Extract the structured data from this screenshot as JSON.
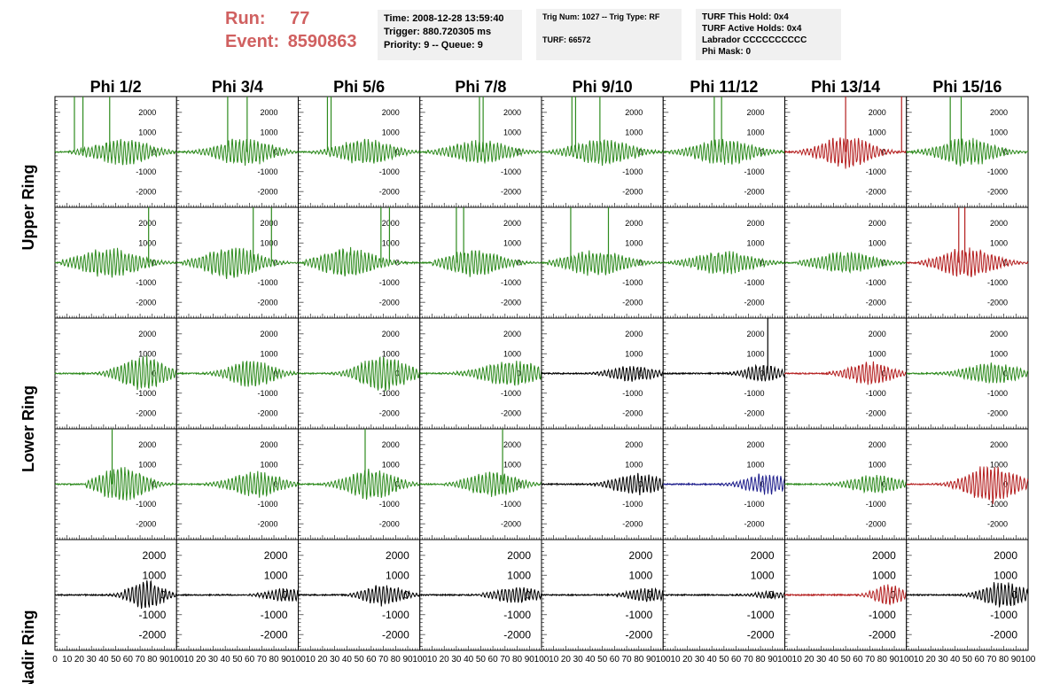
{
  "header": {
    "run_label": "Run:",
    "run_value": "77",
    "event_label": "Event:",
    "event_value": "8590863",
    "time": "Time: 2008-12-28 13:59:40",
    "trigger": "Trigger: 880.720305 ms",
    "priority": "Priority: 9 -- Queue: 9",
    "trig_num": "Trig Num: 1027 -- Trig Type: RF",
    "turf": "TURF: 66572",
    "turf_hold": "TURF This Hold: 0x4",
    "turf_active": "TURF Active Holds: 0x4",
    "labrador": "Labrador CCCCCCCCCC",
    "phi_mask": "Phi Mask: 0"
  },
  "colors": {
    "green": "#2e8b1e",
    "red": "#b41e1e",
    "black": "#000000",
    "blue": "#1e1e8c",
    "header_red": "#d06060",
    "box_bg": "#f0f0f0"
  },
  "chart_data": {
    "type": "line",
    "columns": [
      "Phi 1/2",
      "Phi 3/4",
      "Phi 5/6",
      "Phi 7/8",
      "Phi 9/10",
      "Phi 11/12",
      "Phi 13/14",
      "Phi 15/16"
    ],
    "rows": [
      "Upper Ring",
      "",
      "Lower Ring",
      "",
      "Nadir Ring"
    ],
    "xlim": [
      0,
      100
    ],
    "xticks": [
      0,
      10,
      20,
      30,
      40,
      50,
      60,
      70,
      80,
      90,
      100
    ],
    "xtick_labels_first": [
      "0",
      "10",
      "20",
      "30",
      "40",
      "50",
      "60",
      "70",
      "80",
      "90",
      "100"
    ],
    "xtick_labels_other": [
      "10",
      "20",
      "30",
      "40",
      "50",
      "60",
      "70",
      "80",
      "90",
      "100"
    ],
    "ylim": [
      -2800,
      2800
    ],
    "yticks": [
      2000,
      1000,
      0,
      -1000,
      -2000
    ],
    "ytick_labels": [
      "2000",
      "1000",
      "0",
      "-1000",
      "-2000"
    ],
    "panels": [
      [
        {
          "color": "green",
          "amp": 550,
          "start": 12,
          "center": 55,
          "width": 60,
          "spikes": [
            16,
            23,
            45
          ]
        },
        {
          "color": "green",
          "amp": 600,
          "start": 5,
          "center": 55,
          "width": 55,
          "spikes": [
            42,
            58
          ]
        },
        {
          "color": "green",
          "amp": 550,
          "start": 10,
          "center": 55,
          "width": 55,
          "spikes": [
            24,
            27
          ]
        },
        {
          "color": "green",
          "amp": 500,
          "start": 5,
          "center": 50,
          "width": 60,
          "spikes": [
            49,
            52
          ]
        },
        {
          "color": "green",
          "amp": 550,
          "start": 5,
          "center": 50,
          "width": 60,
          "spikes": [
            25,
            28,
            48
          ]
        },
        {
          "color": "green",
          "amp": 550,
          "start": 5,
          "center": 50,
          "width": 60,
          "spikes": [
            42,
            48
          ]
        },
        {
          "color": "red",
          "amp": 700,
          "start": 5,
          "center": 50,
          "width": 50,
          "spikes": [
            50,
            96
          ]
        },
        {
          "color": "green",
          "amp": 600,
          "start": 5,
          "center": 50,
          "width": 55,
          "spikes": [
            36,
            45
          ]
        }
      ],
      [
        {
          "color": "green",
          "amp": 650,
          "start": 5,
          "center": 45,
          "width": 60,
          "spikes": [
            77
          ]
        },
        {
          "color": "green",
          "amp": 700,
          "start": 5,
          "center": 45,
          "width": 55,
          "spikes": [
            63,
            78
          ]
        },
        {
          "color": "green",
          "amp": 650,
          "start": 5,
          "center": 40,
          "width": 55,
          "spikes": [
            68,
            75
          ]
        },
        {
          "color": "green",
          "amp": 600,
          "start": 10,
          "center": 45,
          "width": 55,
          "spikes": [
            30,
            36
          ]
        },
        {
          "color": "green",
          "amp": 550,
          "start": 5,
          "center": 45,
          "width": 60,
          "spikes": [
            24,
            55
          ]
        },
        {
          "color": "green",
          "amp": 500,
          "start": 5,
          "center": 50,
          "width": 60,
          "spikes": []
        },
        {
          "color": "green",
          "amp": 450,
          "start": 10,
          "center": 50,
          "width": 60,
          "spikes": []
        },
        {
          "color": "red",
          "amp": 650,
          "start": 10,
          "center": 50,
          "width": 55,
          "spikes": [
            43,
            48
          ]
        }
      ],
      [
        {
          "color": "green",
          "amp": 750,
          "start": 20,
          "center": 72,
          "width": 45,
          "spikes": []
        },
        {
          "color": "green",
          "amp": 600,
          "start": 20,
          "center": 62,
          "width": 45,
          "spikes": []
        },
        {
          "color": "green",
          "amp": 750,
          "start": 20,
          "center": 70,
          "width": 50,
          "spikes": []
        },
        {
          "color": "green",
          "amp": 550,
          "start": 10,
          "center": 75,
          "width": 60,
          "spikes": []
        },
        {
          "color": "black",
          "amp": 350,
          "start": 25,
          "center": 75,
          "width": 45,
          "spikes": []
        },
        {
          "color": "black",
          "amp": 400,
          "start": 45,
          "center": 82,
          "width": 35,
          "spikes": [
            86
          ]
        },
        {
          "color": "red",
          "amp": 500,
          "start": 35,
          "center": 70,
          "width": 45,
          "spikes": []
        },
        {
          "color": "green",
          "amp": 450,
          "start": 20,
          "center": 70,
          "width": 55,
          "spikes": []
        }
      ],
      [
        {
          "color": "green",
          "amp": 800,
          "start": 25,
          "center": 55,
          "width": 45,
          "spikes": [
            47
          ]
        },
        {
          "color": "green",
          "amp": 550,
          "start": 20,
          "center": 65,
          "width": 50,
          "spikes": []
        },
        {
          "color": "green",
          "amp": 650,
          "start": 20,
          "center": 60,
          "width": 50,
          "spikes": [
            55
          ]
        },
        {
          "color": "green",
          "amp": 550,
          "start": 20,
          "center": 60,
          "width": 50,
          "spikes": [
            68
          ]
        },
        {
          "color": "black",
          "amp": 450,
          "start": 20,
          "center": 80,
          "width": 50,
          "spikes": []
        },
        {
          "color": "blue",
          "amp": 450,
          "start": 30,
          "center": 85,
          "width": 45,
          "spikes": []
        },
        {
          "color": "green",
          "amp": 400,
          "start": 20,
          "center": 75,
          "width": 50,
          "spikes": []
        },
        {
          "color": "red",
          "amp": 850,
          "start": 20,
          "center": 70,
          "width": 50,
          "spikes": []
        }
      ],
      [
        {
          "color": "black",
          "amp": 600,
          "start": 40,
          "center": 75,
          "width": 35,
          "spikes": []
        },
        {
          "color": "black",
          "amp": 300,
          "start": 40,
          "center": 90,
          "width": 40,
          "spikes": []
        },
        {
          "color": "black",
          "amp": 450,
          "start": 40,
          "center": 70,
          "width": 40,
          "spikes": []
        },
        {
          "color": "black",
          "amp": 350,
          "start": 40,
          "center": 80,
          "width": 45,
          "spikes": []
        },
        {
          "color": "black",
          "amp": 300,
          "start": 45,
          "center": 88,
          "width": 40,
          "spikes": []
        },
        {
          "color": "black",
          "amp": 150,
          "start": 50,
          "center": 90,
          "width": 40,
          "spikes": []
        },
        {
          "color": "red",
          "amp": 450,
          "start": 45,
          "center": 85,
          "width": 30,
          "spikes": []
        },
        {
          "color": "black",
          "amp": 600,
          "start": 40,
          "center": 80,
          "width": 40,
          "spikes": []
        }
      ]
    ]
  }
}
